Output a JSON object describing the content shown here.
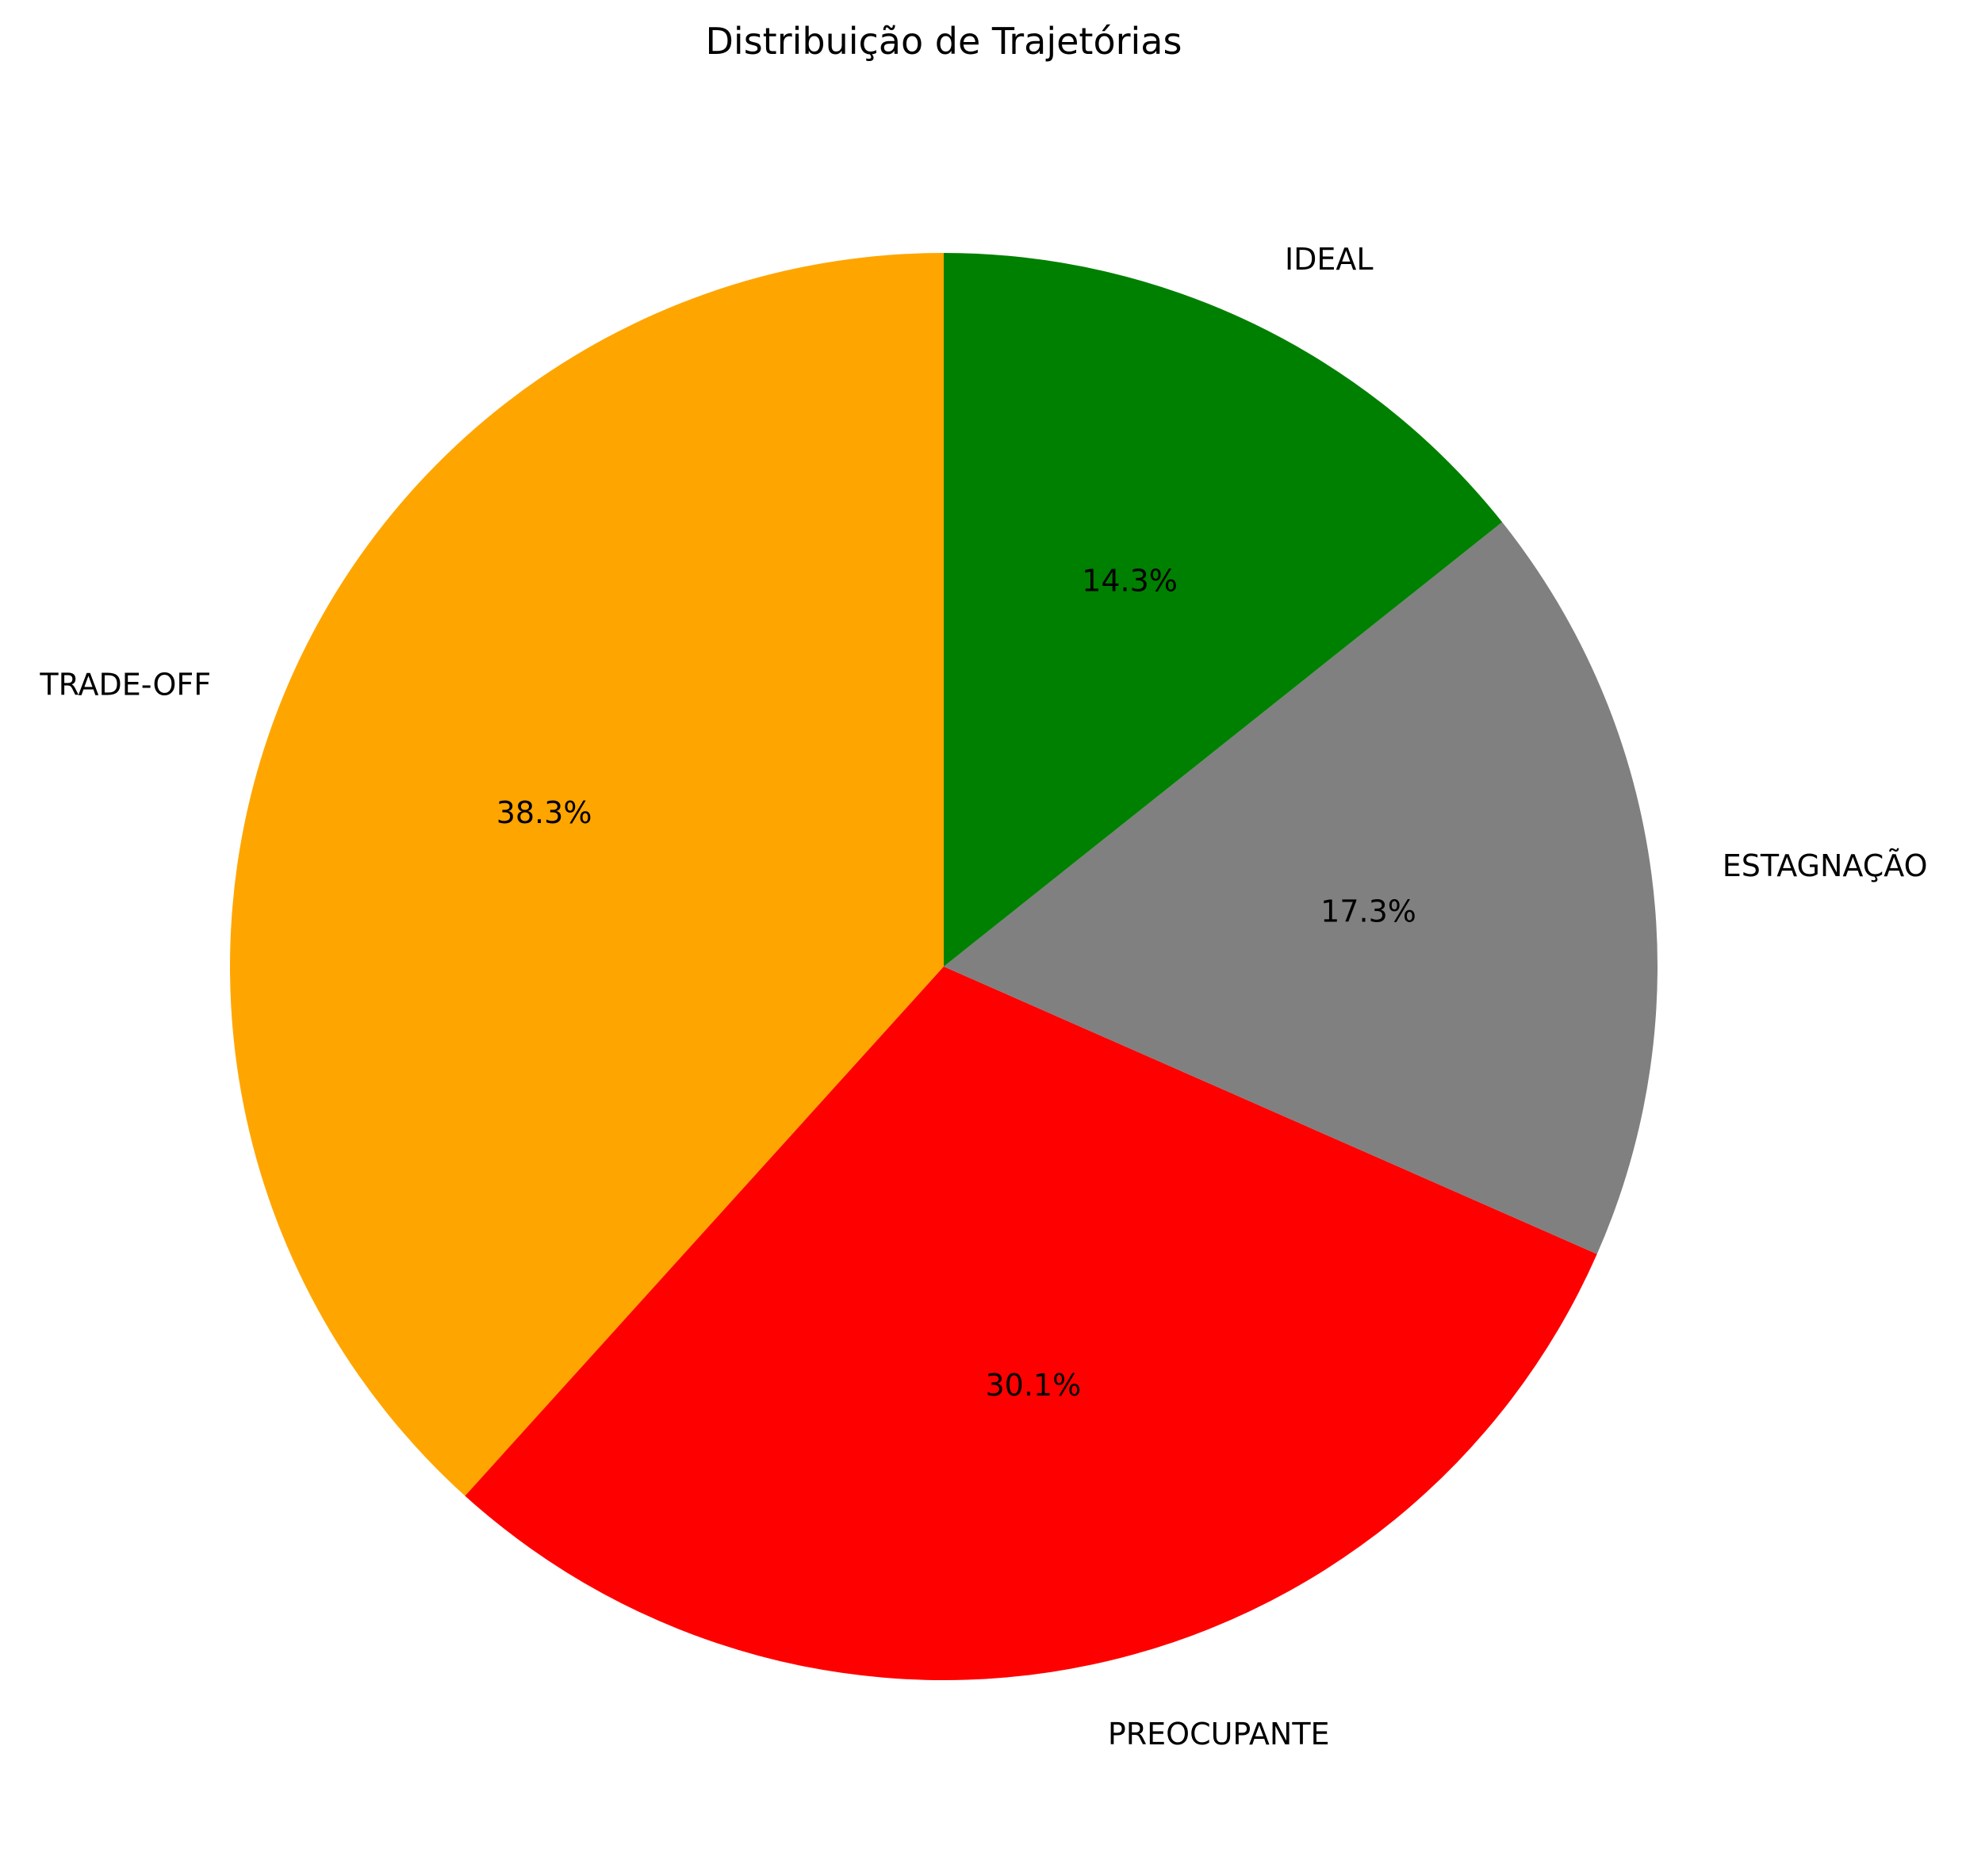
{
  "chart_data": {
    "type": "pie",
    "title": "Distribuição de Trajetórias",
    "start_angle_deg": 90,
    "direction": "counterclockwise",
    "slices": [
      {
        "label": "TRADE-OFF",
        "value": 38.3,
        "pct_label": "38.3%",
        "color": "#FFA500"
      },
      {
        "label": "PREOCUPANTE",
        "value": 30.1,
        "pct_label": "30.1%",
        "color": "#FF0000"
      },
      {
        "label": "ESTAGNAÇÃO",
        "value": 17.3,
        "pct_label": "17.3%",
        "color": "#808080"
      },
      {
        "label": "IDEAL",
        "value": 14.3,
        "pct_label": "14.3%",
        "color": "#008000"
      }
    ]
  }
}
